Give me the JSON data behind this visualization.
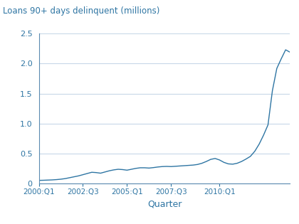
{
  "title": "Loans 90+ days delinquent (millions)",
  "xlabel": "Quarter",
  "ylabel": "",
  "ylim": [
    0,
    2.5
  ],
  "yticks": [
    0,
    0.5,
    1.0,
    1.5,
    2.0,
    2.5
  ],
  "xtick_labels": [
    "2000:Q1",
    "2002:Q3",
    "2005:Q1",
    "2007:Q3",
    "2010:Q1"
  ],
  "line_color": "#2E75A3",
  "background_color": "#ffffff",
  "grid_color": "#c8d8e8",
  "spine_color": "#5a8ab0",
  "text_color": "#2E75A3",
  "series": [
    0.055,
    0.057,
    0.06,
    0.063,
    0.068,
    0.075,
    0.085,
    0.1,
    0.115,
    0.13,
    0.15,
    0.17,
    0.19,
    0.185,
    0.175,
    0.195,
    0.215,
    0.23,
    0.24,
    0.235,
    0.225,
    0.24,
    0.255,
    0.265,
    0.265,
    0.26,
    0.268,
    0.278,
    0.285,
    0.288,
    0.285,
    0.29,
    0.295,
    0.3,
    0.305,
    0.31,
    0.32,
    0.34,
    0.37,
    0.405,
    0.42,
    0.395,
    0.355,
    0.33,
    0.325,
    0.34,
    0.37,
    0.41,
    0.455,
    0.54,
    0.66,
    0.81,
    0.98,
    1.55,
    1.92,
    2.08,
    2.23,
    2.19
  ],
  "n_points": 58,
  "xtick_indices": [
    0,
    10,
    20,
    30,
    41
  ]
}
